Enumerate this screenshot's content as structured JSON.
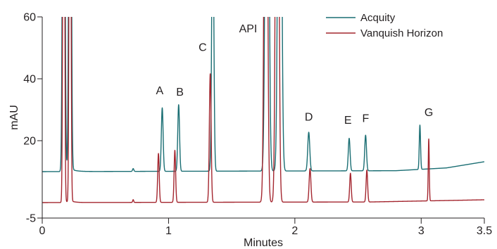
{
  "chart_data": {
    "type": "line",
    "title": "",
    "xlabel": "Minutes",
    "ylabel": "mAU",
    "xlim": [
      0,
      3.5
    ],
    "ylim": [
      -5,
      60
    ],
    "x_ticks": [
      {
        "value": 0,
        "label": "0"
      },
      {
        "value": 1,
        "label": "1"
      },
      {
        "value": 2,
        "label": "2"
      },
      {
        "value": 3,
        "label": "3"
      },
      {
        "value": 3.5,
        "label": "3.5"
      }
    ],
    "y_ticks": [
      {
        "value": -5,
        "label": "-5"
      },
      {
        "value": 20,
        "label": "20"
      },
      {
        "value": 40,
        "label": "40"
      },
      {
        "value": 60,
        "label": "60"
      }
    ],
    "grid": false,
    "legend_position": "top-right",
    "series": [
      {
        "name": "Acquity",
        "color": "#1a6e73",
        "baseline": 10,
        "drift": [
          [
            0,
            10
          ],
          [
            2.8,
            10.3
          ],
          [
            3.2,
            11.2
          ],
          [
            3.5,
            13.2
          ]
        ],
        "peaks": [
          {
            "t": 0.17,
            "h": 220,
            "w": 0.008,
            "tail": 0.03,
            "tailAmp": 0.4
          },
          {
            "t": 0.22,
            "h": 220,
            "w": 0.008,
            "tail": 0.04,
            "tailAmp": 0.4
          },
          {
            "t": 0.72,
            "h": 0.9,
            "w": 0.005
          },
          {
            "t": 0.95,
            "h": 20.5,
            "w": 0.007
          },
          {
            "t": 1.08,
            "h": 21.5,
            "w": 0.007
          },
          {
            "t": 1.35,
            "h": 90,
            "w": 0.008
          },
          {
            "t": 1.78,
            "h": 220,
            "w": 0.012
          },
          {
            "t": 1.88,
            "h": 220,
            "w": 0.012
          },
          {
            "t": 2.11,
            "h": 12.5,
            "w": 0.008
          },
          {
            "t": 2.43,
            "h": 10.5,
            "w": 0.007
          },
          {
            "t": 2.56,
            "h": 11.5,
            "w": 0.007
          },
          {
            "t": 2.99,
            "h": 14.3,
            "w": 0.005
          }
        ]
      },
      {
        "name": "Vanquish Horizon",
        "color": "#a4262f",
        "baseline": 0,
        "drift": [
          [
            0,
            0
          ],
          [
            2.6,
            0.2
          ],
          [
            3.5,
            0.9
          ]
        ],
        "peaks": [
          {
            "t": 0.17,
            "h": 220,
            "w": 0.006,
            "tail": 0.025,
            "tailAmp": 0.3
          },
          {
            "t": 0.22,
            "h": 220,
            "w": 0.006,
            "tail": 0.03,
            "tailAmp": 0.3
          },
          {
            "t": 0.72,
            "h": 0.9,
            "w": 0.004
          },
          {
            "t": 0.92,
            "h": 15.8,
            "w": 0.006
          },
          {
            "t": 1.05,
            "h": 16.8,
            "w": 0.006
          },
          {
            "t": 1.33,
            "h": 41.5,
            "w": 0.007
          },
          {
            "t": 1.77,
            "h": 220,
            "w": 0.011
          },
          {
            "t": 1.86,
            "h": 220,
            "w": 0.011
          },
          {
            "t": 2.12,
            "h": 10.8,
            "w": 0.007
          },
          {
            "t": 2.44,
            "h": 9.3,
            "w": 0.006
          },
          {
            "t": 2.57,
            "h": 10.3,
            "w": 0.006
          },
          {
            "t": 3.06,
            "h": 20,
            "w": 0.004
          }
        ]
      }
    ],
    "annotations": [
      {
        "text": "A",
        "x": 0.93,
        "y": 35
      },
      {
        "text": "B",
        "x": 1.09,
        "y": 34.5
      },
      {
        "text": "C",
        "x": 1.27,
        "y": 49
      },
      {
        "text": "API",
        "x": 1.63,
        "y": 55
      },
      {
        "text": "D",
        "x": 2.11,
        "y": 26.5
      },
      {
        "text": "E",
        "x": 2.42,
        "y": 25.5
      },
      {
        "text": "F",
        "x": 2.56,
        "y": 26
      },
      {
        "text": "G",
        "x": 3.06,
        "y": 28
      }
    ]
  }
}
